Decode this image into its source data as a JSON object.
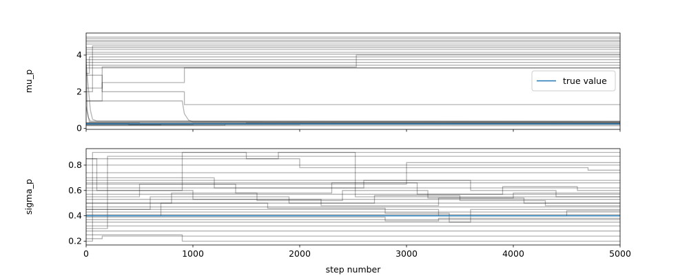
{
  "chart_data": {
    "type": "line",
    "xlabel": "step number",
    "xlim": [
      0,
      5000
    ],
    "x_ticks": [
      0,
      1000,
      2000,
      3000,
      4000,
      5000
    ],
    "walker_color": "#000000",
    "walker_alpha": 0.3,
    "truth_color": "#1f77b4",
    "legend": {
      "label": "true value",
      "placement": "center-right"
    },
    "panels": [
      {
        "ylabel": "mu_p",
        "ylim": [
          -0.05,
          5.2
        ],
        "y_ticks": [
          0,
          2,
          4
        ],
        "true_value": 0.25,
        "series": [
          {
            "x": [
              0,
              5000
            ],
            "y": [
              4.98,
              4.98
            ]
          },
          {
            "x": [
              0,
              5000
            ],
            "y": [
              4.9,
              4.9
            ]
          },
          {
            "x": [
              0,
              5000
            ],
            "y": [
              4.8,
              4.8
            ]
          },
          {
            "x": [
              0,
              5000
            ],
            "y": [
              4.72,
              4.72
            ]
          },
          {
            "x": [
              0,
              5000
            ],
            "y": [
              4.6,
              4.6
            ]
          },
          {
            "x": [
              0,
              60,
              60,
              5000
            ],
            "y": [
              2.0,
              2.0,
              4.5,
              4.5
            ]
          },
          {
            "x": [
              0,
              5000
            ],
            "y": [
              4.4,
              4.4
            ]
          },
          {
            "x": [
              0,
              5000
            ],
            "y": [
              4.3,
              4.3
            ]
          },
          {
            "x": [
              0,
              5000
            ],
            "y": [
              4.15,
              4.15
            ]
          },
          {
            "x": [
              0,
              5000
            ],
            "y": [
              4.05,
              4.05
            ]
          },
          {
            "x": [
              0,
              30,
              30,
              5000
            ],
            "y": [
              3.0,
              3.0,
              3.9,
              3.9
            ]
          },
          {
            "x": [
              0,
              5000
            ],
            "y": [
              3.75,
              3.75
            ]
          },
          {
            "x": [
              0,
              5000
            ],
            "y": [
              3.6,
              3.6
            ]
          },
          {
            "x": [
              0,
              5000
            ],
            "y": [
              3.45,
              3.45
            ]
          },
          {
            "x": [
              0,
              150,
              150,
              2530,
              2530,
              5000
            ],
            "y": [
              2.2,
              2.2,
              3.35,
              3.35,
              4.0,
              4.0
            ]
          },
          {
            "x": [
              0,
              5000
            ],
            "y": [
              3.3,
              3.3
            ]
          },
          {
            "x": [
              0,
              150,
              150,
              920,
              920,
              5000
            ],
            "y": [
              1.5,
              1.5,
              2.5,
              2.5,
              3.3,
              3.3
            ]
          },
          {
            "x": [
              0,
              150,
              150,
              920,
              920,
              5000
            ],
            "y": [
              2.9,
              2.9,
              2.0,
              2.0,
              1.3,
              1.3
            ]
          },
          {
            "x": [
              0,
              40,
              60,
              100,
              5000
            ],
            "y": [
              3.5,
              1.0,
              0.5,
              0.4,
              0.4
            ]
          },
          {
            "x": [
              0,
              20,
              40,
              5000
            ],
            "y": [
              1.2,
              0.6,
              0.4,
              0.38
            ]
          },
          {
            "x": [
              0,
              900,
              920,
              960,
              1000,
              5000
            ],
            "y": [
              1.5,
              1.5,
              0.8,
              0.45,
              0.36,
              0.36
            ]
          },
          {
            "x": [
              0,
              10,
              30,
              5000
            ],
            "y": [
              4.5,
              1.0,
              0.35,
              0.34
            ]
          },
          {
            "x": [
              0,
              5000
            ],
            "y": [
              0.32,
              0.32
            ]
          },
          {
            "x": [
              0,
              500,
              500,
              1500,
              1500,
              5000
            ],
            "y": [
              0.3,
              0.3,
              0.27,
              0.27,
              0.3,
              0.3
            ]
          },
          {
            "x": [
              0,
              5000
            ],
            "y": [
              0.28,
              0.28
            ]
          },
          {
            "x": [
              0,
              1000,
              1000,
              5000
            ],
            "y": [
              0.22,
              0.22,
              0.26,
              0.26
            ]
          },
          {
            "x": [
              0,
              700,
              700,
              5000
            ],
            "y": [
              0.2,
              0.2,
              0.24,
              0.24
            ]
          },
          {
            "x": [
              0,
              1300,
              1300,
              5000
            ],
            "y": [
              0.18,
              0.18,
              0.23,
              0.23
            ]
          },
          {
            "x": [
              0,
              400,
              400,
              2000,
              2000,
              5000
            ],
            "y": [
              0.26,
              0.26,
              0.2,
              0.2,
              0.22,
              0.22
            ]
          },
          {
            "x": [
              0,
              5000
            ],
            "y": [
              0.15,
              0.15
            ]
          }
        ]
      },
      {
        "ylabel": "sigma_p",
        "ylim": [
          0.17,
          0.93
        ],
        "y_ticks": [
          0.2,
          0.4,
          0.6,
          0.8
        ],
        "true_value": 0.4,
        "series": [
          {
            "x": [
              0,
              60,
              60,
              5000
            ],
            "y": [
              0.2,
              0.2,
              0.9,
              0.9
            ]
          },
          {
            "x": [
              0,
              200,
              200,
              5000
            ],
            "y": [
              0.3,
              0.3,
              0.87,
              0.87
            ]
          },
          {
            "x": [
              0,
              100,
              100,
              900,
              900,
              1500,
              1500,
              1800,
              1800,
              2520,
              2520,
              5000
            ],
            "y": [
              0.85,
              0.85,
              0.6,
              0.6,
              0.9,
              0.9,
              0.85,
              0.85,
              0.9,
              0.9,
              0.55,
              0.55
            ]
          },
          {
            "x": [
              0,
              5000
            ],
            "y": [
              0.8,
              0.8
            ]
          },
          {
            "x": [
              0,
              2000,
              2000,
              3000,
              3000,
              5000
            ],
            "y": [
              0.85,
              0.85,
              0.78,
              0.78,
              0.82,
              0.82
            ]
          },
          {
            "x": [
              0,
              3000,
              3000,
              4700,
              4700,
              5000
            ],
            "y": [
              0.65,
              0.65,
              0.78,
              0.78,
              0.76,
              0.76
            ]
          },
          {
            "x": [
              0,
              5000
            ],
            "y": [
              0.74,
              0.74
            ]
          },
          {
            "x": [
              0,
              1200,
              1200,
              2600,
              2600,
              3600,
              3600,
              4400,
              4400,
              5000
            ],
            "y": [
              0.7,
              0.7,
              0.62,
              0.62,
              0.68,
              0.68,
              0.6,
              0.6,
              0.55,
              0.55
            ]
          },
          {
            "x": [
              0,
              5000
            ],
            "y": [
              0.68,
              0.68
            ]
          },
          {
            "x": [
              0,
              500,
              500,
              1400,
              1400,
              2300,
              2300,
              3100,
              3100,
              3900,
              3900,
              4600,
              4600,
              5000
            ],
            "y": [
              0.55,
              0.55,
              0.65,
              0.65,
              0.58,
              0.58,
              0.66,
              0.66,
              0.57,
              0.57,
              0.63,
              0.63,
              0.6,
              0.6
            ]
          },
          {
            "x": [
              0,
              5000
            ],
            "y": [
              0.66,
              0.66
            ]
          },
          {
            "x": [
              0,
              800,
              800,
              1600,
              1600,
              2400,
              2400,
              3200,
              3200,
              4000,
              4000,
              5000
            ],
            "y": [
              0.5,
              0.5,
              0.58,
              0.58,
              0.52,
              0.52,
              0.6,
              0.6,
              0.54,
              0.54,
              0.58,
              0.58
            ]
          },
          {
            "x": [
              0,
              5000
            ],
            "y": [
              0.62,
              0.62
            ]
          },
          {
            "x": [
              0,
              600,
              600,
              1900,
              1900,
              2700,
              2700,
              3500,
              3500,
              4300,
              4300,
              5000
            ],
            "y": [
              0.45,
              0.45,
              0.55,
              0.55,
              0.5,
              0.5,
              0.56,
              0.56,
              0.52,
              0.52,
              0.48,
              0.48
            ]
          },
          {
            "x": [
              0,
              5000
            ],
            "y": [
              0.57,
              0.57
            ]
          },
          {
            "x": [
              0,
              1000,
              1000,
              2200,
              2200,
              3300,
              3300,
              4100,
              4100,
              5000
            ],
            "y": [
              0.6,
              0.6,
              0.53,
              0.53,
              0.48,
              0.48,
              0.54,
              0.54,
              0.5,
              0.5
            ]
          },
          {
            "x": [
              0,
              5000
            ],
            "y": [
              0.53,
              0.53
            ]
          },
          {
            "x": [
              0,
              700,
              700,
              1700,
              1700,
              2800,
              2800,
              3400,
              3400,
              3600,
              3600,
              5000
            ],
            "y": [
              0.4,
              0.4,
              0.5,
              0.5,
              0.46,
              0.46,
              0.42,
              0.42,
              0.35,
              0.35,
              0.45,
              0.45
            ]
          },
          {
            "x": [
              0,
              5000
            ],
            "y": [
              0.5,
              0.5
            ]
          },
          {
            "x": [
              0,
              5000
            ],
            "y": [
              0.47,
              0.47
            ]
          },
          {
            "x": [
              0,
              3300,
              3300,
              4500,
              4500,
              5000
            ],
            "y": [
              0.45,
              0.45,
              0.4,
              0.4,
              0.44,
              0.44
            ]
          },
          {
            "x": [
              0,
              5000
            ],
            "y": [
              0.43,
              0.43
            ]
          },
          {
            "x": [
              0,
              5000
            ],
            "y": [
              0.41,
              0.41
            ]
          },
          {
            "x": [
              0,
              2800,
              2800,
              3300,
              3300,
              5000
            ],
            "y": [
              0.39,
              0.39,
              0.36,
              0.36,
              0.38,
              0.38
            ]
          },
          {
            "x": [
              0,
              5000
            ],
            "y": [
              0.37,
              0.37
            ]
          },
          {
            "x": [
              0,
              5000
            ],
            "y": [
              0.35,
              0.35
            ]
          },
          {
            "x": [
              0,
              5000
            ],
            "y": [
              0.32,
              0.32
            ]
          },
          {
            "x": [
              0,
              5000
            ],
            "y": [
              0.28,
              0.28
            ]
          },
          {
            "x": [
              0,
              150,
              150,
              5000
            ],
            "y": [
              0.22,
              0.22,
              0.24,
              0.24
            ]
          },
          {
            "x": [
              0,
              900,
              900,
              5000
            ],
            "y": [
              0.25,
              0.25,
              0.2,
              0.2
            ]
          }
        ]
      }
    ]
  }
}
